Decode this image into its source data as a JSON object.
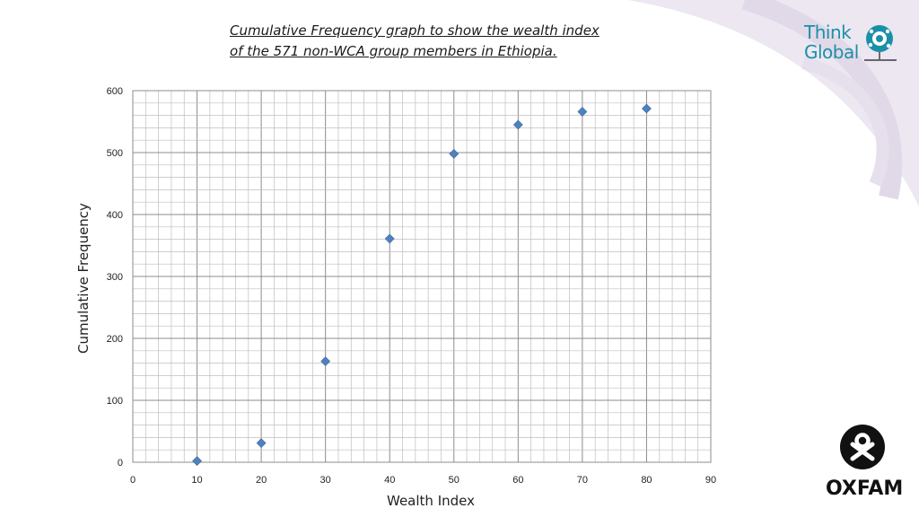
{
  "header": {
    "title_line1": "Cumulative Frequency graph to show the wealth index",
    "title_line2": "of  the 571 non-WCA group members in Ethiopia."
  },
  "logos": {
    "think_global": {
      "line1": "Think",
      "line2": "Global",
      "color": "#1c8fa8",
      "icon": "globe-icon"
    },
    "oxfam": {
      "text": "OXFAM",
      "color": "#111111",
      "icon": "oxfam-icon"
    }
  },
  "colors": {
    "marker": "#4f81bd",
    "swirl": "#e8e2ee",
    "grid": "#bfbfbf"
  },
  "chart_data": {
    "type": "scatter",
    "xlabel": "Wealth Index",
    "ylabel": "Cumulative Frequency",
    "xlim": [
      0,
      90
    ],
    "ylim": [
      0,
      600
    ],
    "x_ticks": [
      0,
      10,
      20,
      30,
      40,
      50,
      60,
      70,
      80,
      90
    ],
    "y_ticks": [
      0,
      100,
      200,
      300,
      400,
      500,
      600
    ],
    "grid": true,
    "marker": "diamond",
    "series": [
      {
        "points": [
          {
            "x": 10,
            "y": 2
          },
          {
            "x": 20,
            "y": 31
          },
          {
            "x": 30,
            "y": 163
          },
          {
            "x": 40,
            "y": 361
          },
          {
            "x": 50,
            "y": 498
          },
          {
            "x": 60,
            "y": 545
          },
          {
            "x": 70,
            "y": 566
          },
          {
            "x": 80,
            "y": 571
          }
        ]
      }
    ]
  }
}
